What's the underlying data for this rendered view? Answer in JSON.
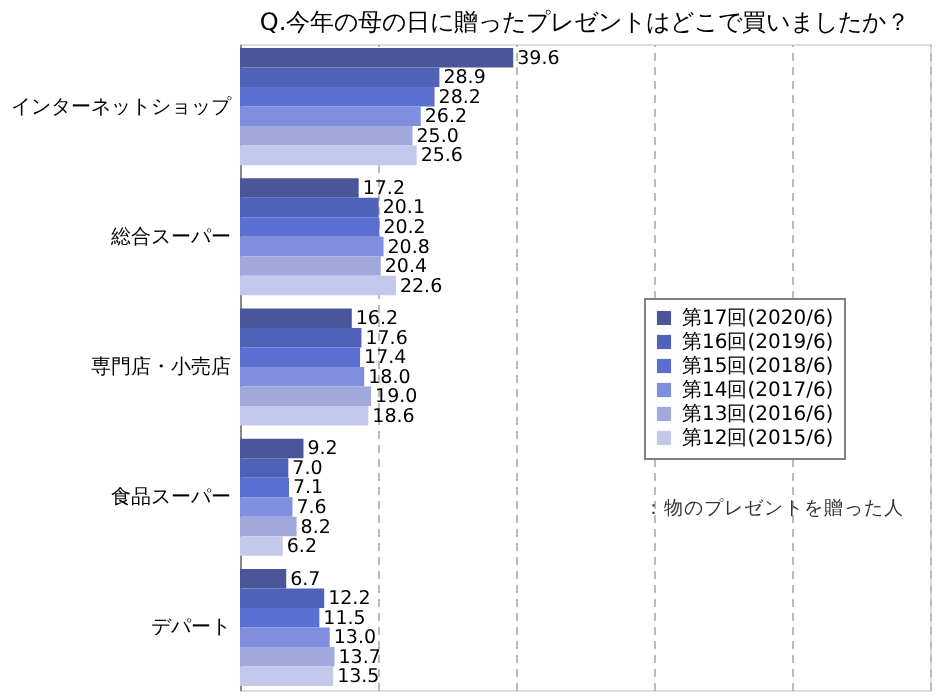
{
  "chart_data": {
    "type": "bar",
    "orientation": "horizontal",
    "title": "Q.今年の母の日に贈ったプレゼントはどこで買いましたか？",
    "categories": [
      "インターネットショップ",
      "総合スーパー",
      "専門店・小売店",
      "食品スーパー",
      "デパート"
    ],
    "series": [
      {
        "name": "第17回(2020/6)",
        "color": "#4b5699",
        "values": [
          39.6,
          17.2,
          16.2,
          9.2,
          6.7
        ],
        "value_labels": [
          "39.6",
          "17.2",
          "16.2",
          "9.2",
          "6.7"
        ]
      },
      {
        "name": "第16回(2019/6)",
        "color": "#5062b8",
        "values": [
          28.9,
          20.1,
          17.6,
          7.0,
          12.2
        ],
        "value_labels": [
          "28.9",
          "20.1",
          "17.6",
          "7.0",
          "12.2"
        ]
      },
      {
        "name": "第15回(2018/6)",
        "color": "#5b6fd0",
        "values": [
          28.2,
          20.2,
          17.4,
          7.1,
          11.5
        ],
        "value_labels": [
          "28.2",
          "20.2",
          "17.4",
          "7.1",
          "11.5"
        ]
      },
      {
        "name": "第14回(2017/6)",
        "color": "#7f8ede",
        "values": [
          26.2,
          20.8,
          18.0,
          7.6,
          13.0
        ],
        "value_labels": [
          "26.2",
          "20.8",
          "18.0",
          "7.6",
          "13.0"
        ]
      },
      {
        "name": "第13回(2016/6)",
        "color": "#a0a8dc",
        "values": [
          25.0,
          20.4,
          19.0,
          8.2,
          13.7
        ],
        "value_labels": [
          "25.0",
          "20.4",
          "19.0",
          "8.2",
          "13.7"
        ]
      },
      {
        "name": "第12回(2015/6)",
        "color": "#c4c8ea",
        "values": [
          25.6,
          22.6,
          18.6,
          6.2,
          13.5
        ],
        "value_labels": [
          "25.6",
          "22.6",
          "18.6",
          "6.2",
          "13.5"
        ]
      }
    ],
    "xlim": [
      0,
      100
    ],
    "xticks": [
      {
        "value": 0,
        "label": null
      },
      {
        "value": 20,
        "label": null
      },
      {
        "value": 40,
        "label": null
      },
      {
        "value": 60,
        "label": null
      },
      {
        "value": 80,
        "label": null
      },
      {
        "value": 100,
        "label": null
      }
    ],
    "tick_labels": "y",
    "grid": "x",
    "legend": "right",
    "annotations": [
      "：物のプレゼントを贈った人"
    ]
  }
}
